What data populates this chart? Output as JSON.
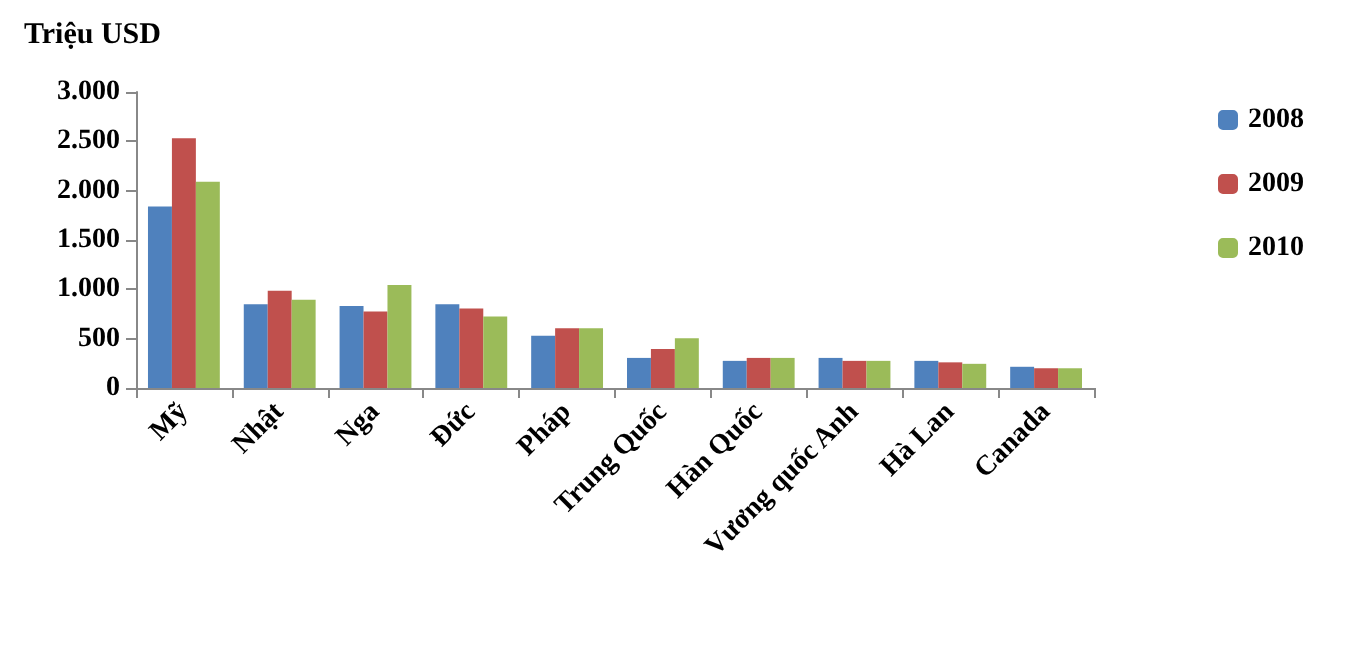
{
  "chart_data": {
    "type": "bar",
    "ylabel": "Triệu USD",
    "categories": [
      "Mỹ",
      "Nhật",
      "Nga",
      "Đức",
      "Pháp",
      "Trung Quốc",
      "Hàn Quốc",
      "Vương quốc Anh",
      "Hà Lan",
      "Canada"
    ],
    "series": [
      {
        "name": "2008",
        "color": "#4f81bd",
        "values": [
          1840,
          850,
          830,
          850,
          530,
          305,
          275,
          305,
          275,
          215
        ]
      },
      {
        "name": "2009",
        "color": "#c0504d",
        "values": [
          2530,
          985,
          775,
          805,
          605,
          395,
          305,
          275,
          260,
          200
        ]
      },
      {
        "name": "2010",
        "color": "#9bbb59",
        "values": [
          2090,
          895,
          1045,
          725,
          605,
          505,
          305,
          275,
          245,
          200
        ]
      }
    ],
    "ylim": [
      0,
      3000
    ],
    "yticks": [
      0,
      500,
      {
        "value": 1000,
        "label": "1.000"
      },
      {
        "value": 1500,
        "label": "1.500"
      },
      {
        "value": 2000,
        "label": "2.000"
      },
      {
        "value": 2500,
        "label": "2.500"
      },
      {
        "value": 3000,
        "label": "3.000"
      }
    ],
    "grid": false,
    "legend": "right"
  }
}
